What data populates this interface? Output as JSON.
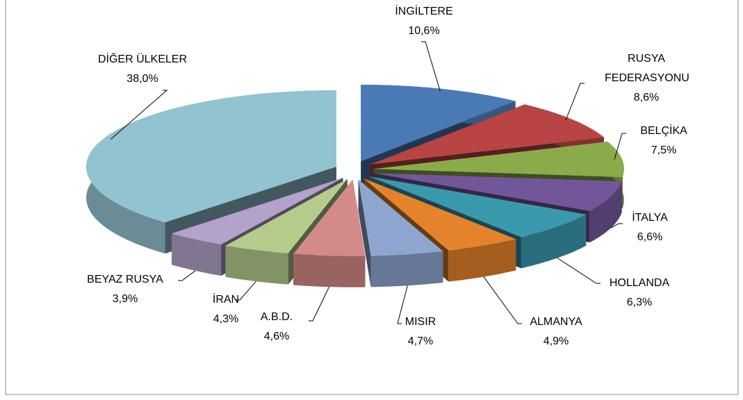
{
  "chart_data": {
    "type": "pie3d",
    "categories": [
      "İNGİLTERE",
      "RUSYA FEDERASYONU",
      "BELÇİKA",
      "İTALYA",
      "HOLLANDA",
      "ALMANYA",
      "MISIR",
      "A.B.D.",
      "İRAN",
      "BEYAZ RUSYA",
      "DİĞER ÜLKELER"
    ],
    "values": [
      10.6,
      8.6,
      7.5,
      6.6,
      6.3,
      4.9,
      4.7,
      4.6,
      4.3,
      3.9,
      38.0
    ],
    "value_labels": [
      "10,6%",
      "8,6%",
      "7,5%",
      "6,6%",
      "6,3%",
      "4,9%",
      "4,7%",
      "4,6%",
      "4,3%",
      "3,9%",
      "38,0%"
    ],
    "colors": [
      "#4a7ab5",
      "#b84444",
      "#8bab4a",
      "#72569a",
      "#3b99ad",
      "#e5832d",
      "#8ea6cf",
      "#d48a88",
      "#b5cc8c",
      "#b3a2c9",
      "#92c3d1"
    ]
  }
}
